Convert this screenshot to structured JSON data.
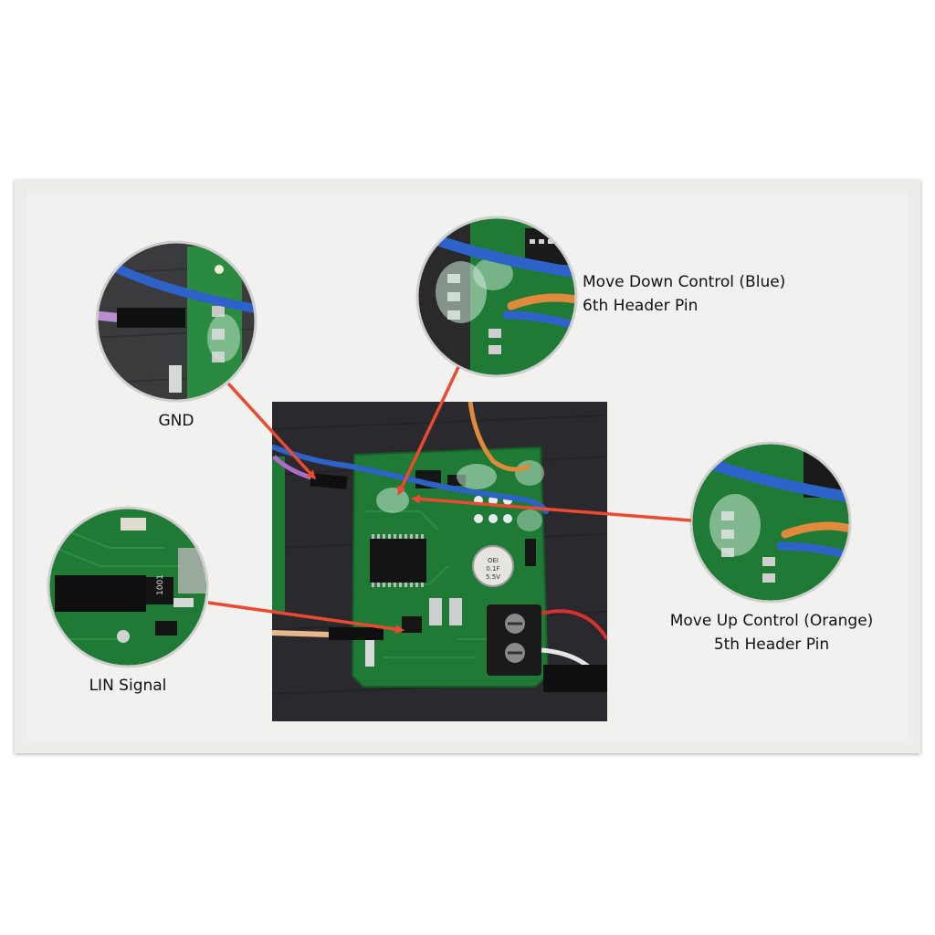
{
  "callouts": {
    "gnd": {
      "label": "GND"
    },
    "lin": {
      "label": "LIN Signal"
    },
    "move_down": {
      "line1": "Move Down Control (Blue)",
      "line2": "6th Header Pin"
    },
    "move_up": {
      "line1": "Move Up Control (Orange)",
      "line2": "5th Header Pin"
    }
  },
  "board": {
    "chip_text": "OEI\n0.1F\n5.5V"
  },
  "colors": {
    "card": "#ededeb",
    "pcb": "#1f7a35",
    "arrow": "#ea4a2f",
    "wire_blue": "#2d63c8",
    "wire_orange": "#e08a3c",
    "wire_purple": "#b06ac9",
    "table": "#2a2a2e"
  }
}
